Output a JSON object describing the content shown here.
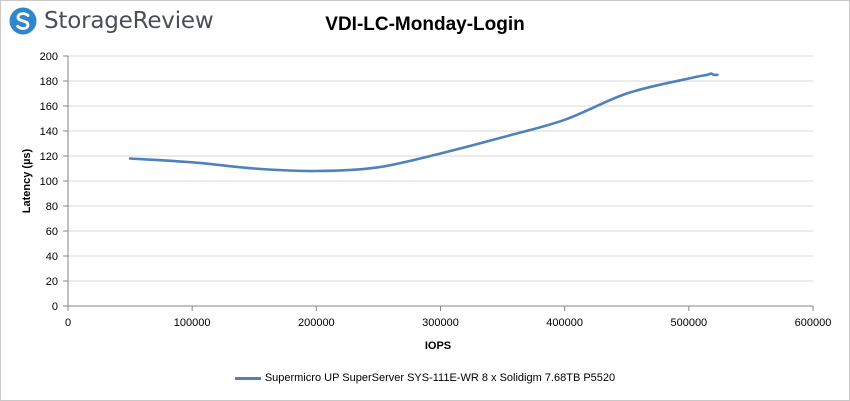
{
  "logo": {
    "text": "StorageReview",
    "icon": "storagereview-logo-icon"
  },
  "colors": {
    "series": "#4f81bd",
    "grid": "#d9d9d9",
    "axis": "#868686",
    "logo_blue": "#2f86c9"
  },
  "chart_data": {
    "type": "line",
    "title": "VDI-LC-Monday-Login",
    "xlabel": "IOPS",
    "ylabel": "Latency (µs)",
    "xlim": [
      0,
      600000
    ],
    "ylim": [
      0,
      200
    ],
    "x_ticks": [
      "0",
      "100000",
      "200000",
      "300000",
      "400000",
      "500000",
      "600000"
    ],
    "y_ticks": [
      "0",
      "20",
      "40",
      "60",
      "80",
      "100",
      "120",
      "140",
      "160",
      "180",
      "200"
    ],
    "grid": "horizontal",
    "legend_position": "bottom",
    "series": [
      {
        "name": "Supermicro UP SuperServer SYS-111E-WR 8 x Solidigm 7.68TB P5520",
        "x": [
          50000,
          100000,
          150000,
          200000,
          250000,
          300000,
          350000,
          400000,
          450000,
          500000,
          515000,
          518000,
          520000,
          523000
        ],
        "y": [
          118,
          115,
          110,
          108,
          111,
          122,
          135,
          149,
          170,
          182,
          185,
          186,
          185,
          185
        ]
      }
    ]
  }
}
